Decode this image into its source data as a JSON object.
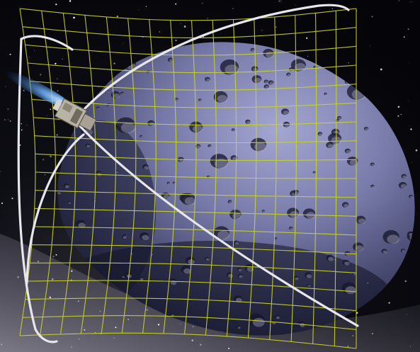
{
  "scene": {
    "subject": "asteroid-capture-net-illustration",
    "colors": {
      "space": "#06070d",
      "milky_way": "#b8b4c8",
      "asteroid_light": "#9a9cc8",
      "asteroid_mid": "#5c5f8c",
      "asteroid_dark": "#1f2038",
      "net": "#c8d42a",
      "hoop": "#e8e8ee",
      "thruster": "#6fb4ff",
      "spacecraft": "#b9b3a6"
    },
    "icons": [
      "asteroid-icon",
      "capture-net-icon",
      "spacecraft-icon",
      "thruster-plume-icon",
      "star-field-icon"
    ]
  }
}
